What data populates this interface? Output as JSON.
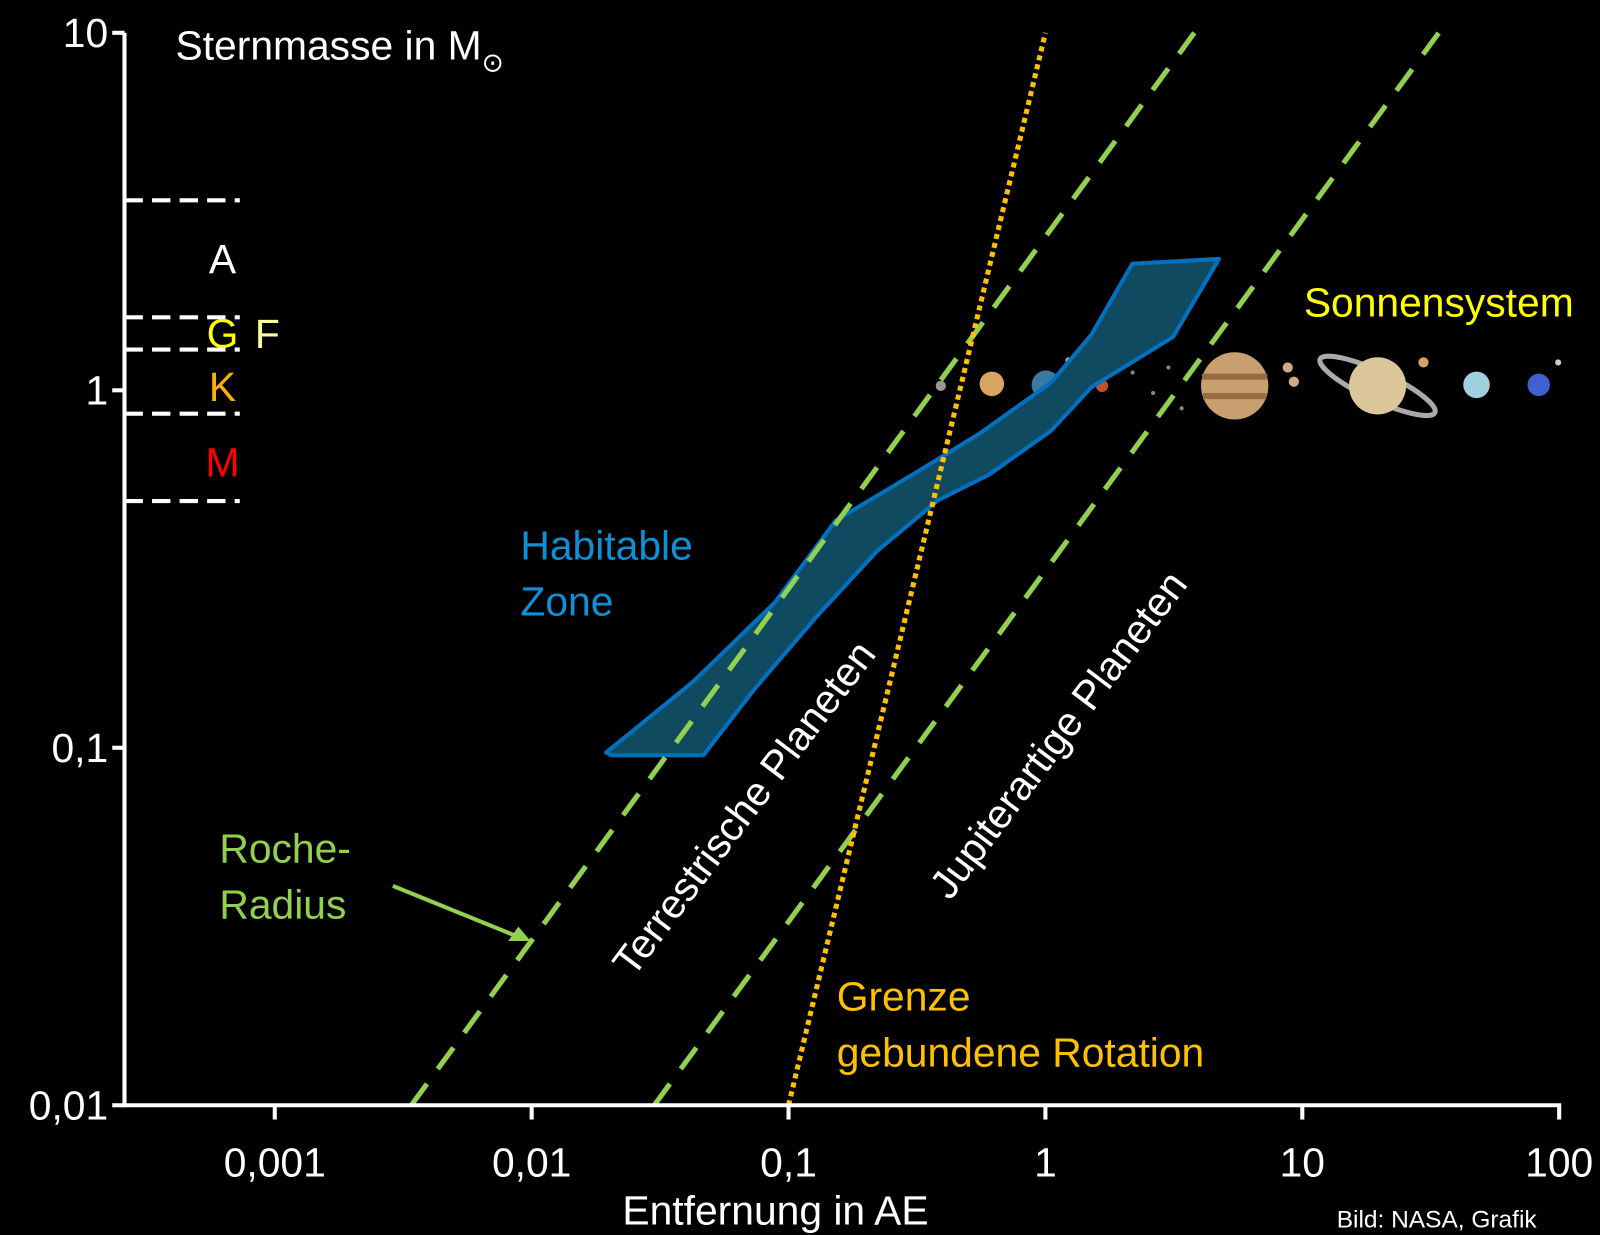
{
  "chart_data": {
    "type": "line",
    "y_label": {
      "text": "Sternmasse in M",
      "subscript": "⊙"
    },
    "x_label": "Entfernung in AE",
    "log_x": true,
    "log_y": true,
    "xlim": [
      0.00026,
      100
    ],
    "ylim": [
      0.01,
      10
    ],
    "xticks": [
      {
        "value": 0.001,
        "label": "0,001"
      },
      {
        "value": 0.01,
        "label": "0,01"
      },
      {
        "value": 0.1,
        "label": "0,1"
      },
      1,
      10,
      100
    ],
    "yticks": [
      {
        "value": 0.01,
        "label": "0,01"
      },
      {
        "value": 0.1,
        "label": "0,1"
      },
      1,
      10
    ],
    "lines": [
      {
        "x": [
          0.0034,
          3.8
        ],
        "y": [
          0.01,
          10
        ],
        "color": "#92d050",
        "style": "dashed"
      },
      {
        "x": [
          0.03,
          34
        ],
        "y": [
          0.01,
          10
        ],
        "color": "#92d050",
        "style": "dashed"
      },
      {
        "x": [
          0.1,
          1
        ],
        "y": [
          0.01,
          10
        ],
        "color": "#ffc000",
        "style": "dotted"
      }
    ],
    "habitable_zone": {
      "x": [
        0.0195,
        0.0425,
        0.0885,
        0.153,
        0.319,
        0.552,
        1.05,
        1.51,
        2.18,
        4.74,
        3.14,
        1.51,
        1.05,
        0.604,
        0.383,
        0.221,
        0.128,
        0.0737,
        0.0466,
        0.0205
      ],
      "y": [
        0.097,
        0.153,
        0.255,
        0.433,
        0.593,
        0.755,
        1.05,
        1.43,
        2.26,
        2.33,
        1.41,
        1.02,
        0.77,
        0.581,
        0.493,
        0.355,
        0.232,
        0.146,
        0.0953,
        0.0953
      ],
      "fill": "#0f4a60",
      "color": "#0070c0"
    },
    "class_boundaries": [
      3.4,
      1.6,
      1.3,
      0.86,
      0.49
    ],
    "classes": [
      {
        "label": "A",
        "color": "#ffffff"
      },
      {
        "label": "F",
        "color": "#ffff99"
      },
      {
        "label": "G",
        "color": "#ffff00"
      },
      {
        "label": "K",
        "color": "#ffb000"
      },
      {
        "label": "M",
        "color": "#ff0000"
      }
    ],
    "annotations": {
      "habitable": {
        "lines": [
          "Habitable",
          "Zone"
        ],
        "color": "#0e8fd6"
      },
      "roche": {
        "lines": [
          "Roche-",
          "Radius"
        ],
        "color": "#92d050"
      },
      "terrestrial": "Terrestrische Planeten",
      "jovian": "Jupiterartige Planeten",
      "tidal": {
        "lines": [
          "Grenze",
          "gebundene Rotation"
        ],
        "color": "#ffc000"
      },
      "solar_system": {
        "text": "Sonnensystem",
        "color": "#ffff00"
      },
      "credit": "Bild: NASA, Grafik"
    }
  }
}
